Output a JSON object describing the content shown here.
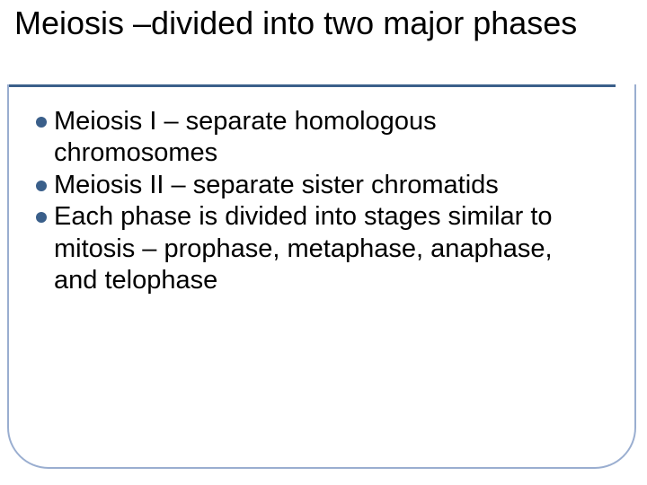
{
  "slide": {
    "title": "Meiosis –divided into two major phases",
    "title_color": "#000000",
    "title_fontsize": 36,
    "underline_color": "#3a5f8a",
    "border_color": "#9aaed0",
    "border_radius": 46,
    "background_color": "#ffffff",
    "bullets": [
      {
        "text": "Meiosis I – separate homologous chromosomes",
        "dot_color": "#3a5f8a"
      },
      {
        "text": "Meiosis II – separate sister chromatids",
        "dot_color": "#3a5f8a"
      },
      {
        "text": "Each phase is divided into stages similar to mitosis – prophase, metaphase, anaphase, and telophase",
        "dot_color": "#3a5f8a"
      }
    ],
    "bullet_fontsize": 29,
    "bullet_text_color": "#000000"
  }
}
